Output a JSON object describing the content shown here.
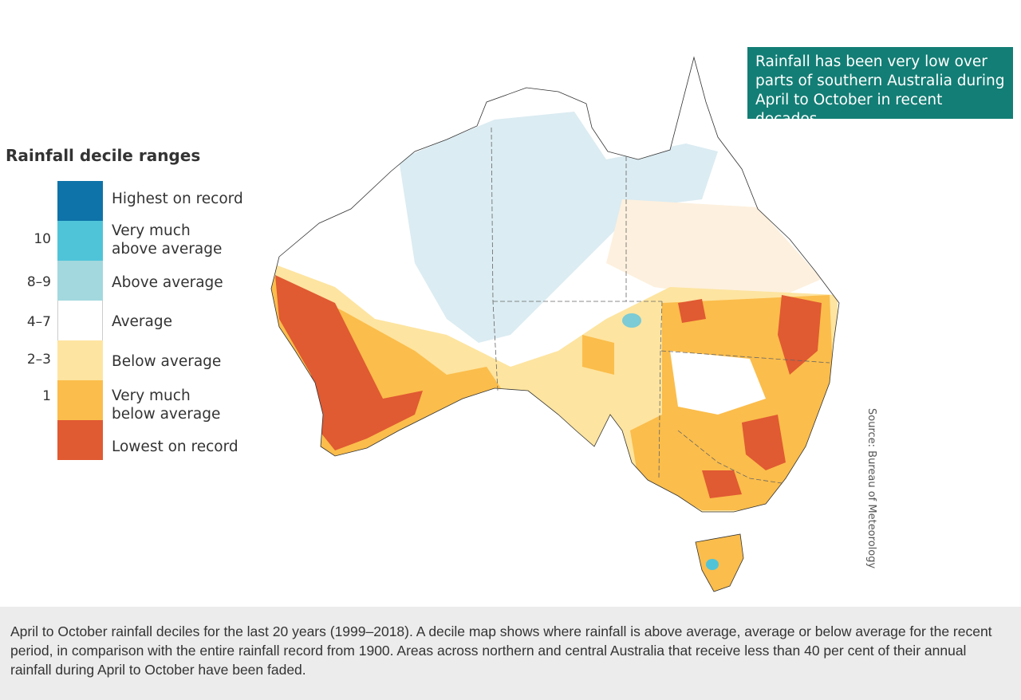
{
  "legend": {
    "title": "Rainfall decile ranges",
    "items": [
      {
        "label": "Highest on record",
        "decile": "",
        "color": "#0e73a8"
      },
      {
        "label_line1": "Very much",
        "label_line2": "above average",
        "decile": "10",
        "color": "#4fc4d9"
      },
      {
        "label": "Above average",
        "decile": "8–9",
        "color": "#a2d8de"
      },
      {
        "label": "Average",
        "decile": "4–7",
        "color": "#ffffff"
      },
      {
        "label": "Below average",
        "decile": "2–3",
        "color": "#fde4a0"
      },
      {
        "label_line1": "Very much",
        "label_line2": "below average",
        "decile": "1",
        "color": "#fbbd4b"
      },
      {
        "label": "Lowest on record",
        "decile": "",
        "color": "#e05a32"
      }
    ]
  },
  "callout": {
    "text": "Rainfall has been very low over parts of southern Australia during April to October in recent decades.",
    "color": "#137e75"
  },
  "source": "Source: Bureau of Meteorology",
  "caption": "April to October rainfall deciles for the last 20 years (1999–2018). A decile map shows where rainfall is above average, average or below average for the recent period, in comparison with the entire rainfall record from 1900. Areas across northern and central Australia that receive less than 40 per cent of their annual rainfall during April to October have been faded."
}
